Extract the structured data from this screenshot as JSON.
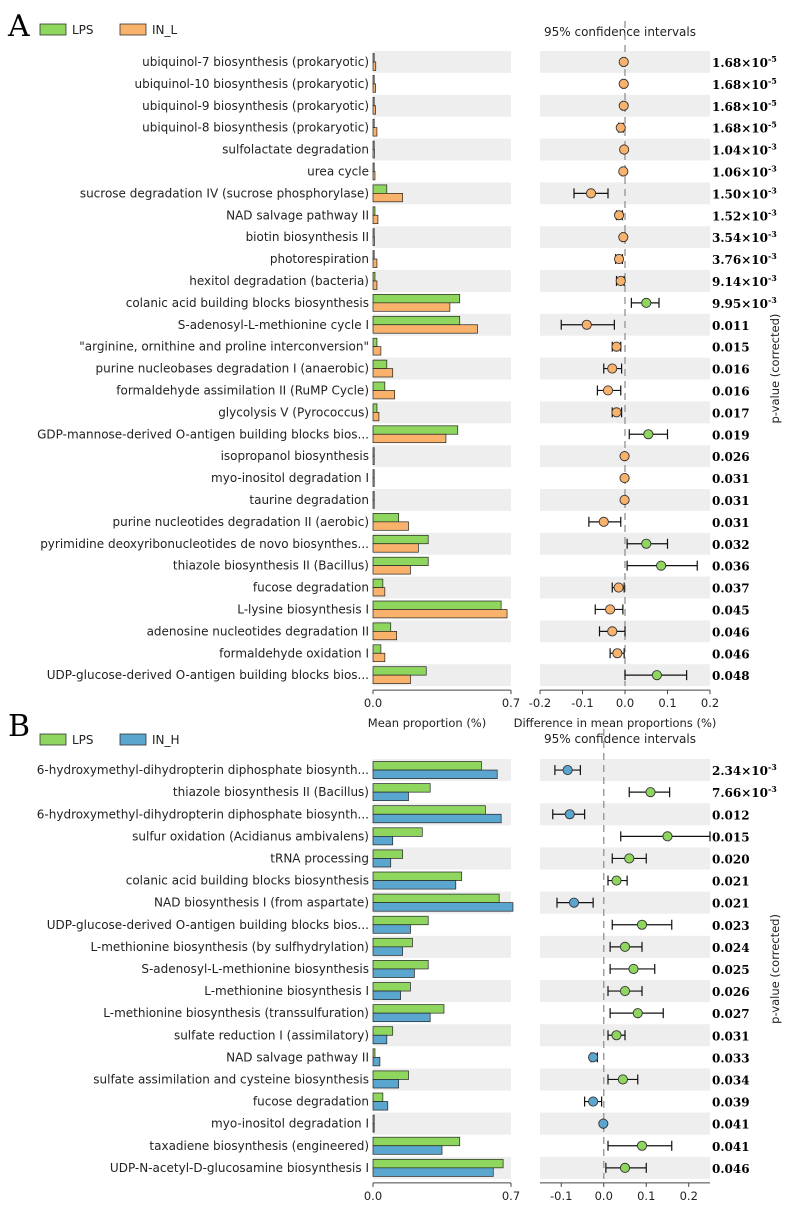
{
  "chart_data": [
    {
      "type": "bar",
      "panel": "A",
      "legend": [
        {
          "name": "LPS",
          "color": "#8fd65e"
        },
        {
          "name": "IN_L",
          "color": "#f9b26c"
        }
      ],
      "xlabel_bars": "Mean proportion (%)",
      "xlabel_diff": "Difference in mean proportions (%)",
      "ci_title": "95% confidence intervals",
      "pvalue_label": "p-value (corrected)",
      "bar_xlim": [
        0,
        0.7
      ],
      "bar_ticks": [
        "0.0",
        "0.7"
      ],
      "diff_xlim": [
        -0.2,
        0.2
      ],
      "diff_ticks": [
        "-0.2",
        "-0.1",
        "0.0",
        "0.1",
        "0.2"
      ],
      "categories": [
        "ubiquinol-7 biosynthesis (prokaryotic)",
        "ubiquinol-10 biosynthesis (prokaryotic)",
        "ubiquinol-9 biosynthesis (prokaryotic)",
        "ubiquinol-8 biosynthesis (prokaryotic)",
        "sulfolactate degradation",
        "urea cycle",
        "sucrose degradation IV (sucrose phosphorylase)",
        "NAD salvage pathway II",
        "biotin biosynthesis II",
        "photorespiration",
        "hexitol degradation (bacteria)",
        "colanic acid building blocks biosynthesis",
        "S-adenosyl-L-methionine cycle I",
        "\"arginine, ornithine and proline interconversion\"",
        "purine nucleobases degradation I (anaerobic)",
        "formaldehyde assimilation II (RuMP Cycle)",
        "glycolysis V (Pyrococcus)",
        "GDP-mannose-derived O-antigen building blocks bios...",
        "isopropanol biosynthesis",
        "myo-inositol degradation I",
        "taurine degradation",
        "purine nucleotides degradation II (aerobic)",
        "pyrimidine deoxyribonucleotides de novo biosynthes...",
        "thiazole biosynthesis II (Bacillus)",
        "fucose degradation",
        "L-lysine biosynthesis I",
        "adenosine nucleotides degradation II",
        "formaldehyde oxidation I",
        "UDP-glucose-derived O-antigen building blocks bios..."
      ],
      "series": [
        {
          "name": "LPS",
          "values": [
            0.005,
            0.005,
            0.005,
            0.005,
            0.003,
            0.004,
            0.07,
            0.01,
            0.003,
            0.006,
            0.01,
            0.44,
            0.44,
            0.02,
            0.07,
            0.06,
            0.02,
            0.43,
            0.002,
            0.004,
            0.002,
            0.13,
            0.28,
            0.28,
            0.05,
            0.65,
            0.09,
            0.04,
            0.27
          ]
        },
        {
          "name": "IN_L",
          "values": [
            0.014,
            0.013,
            0.013,
            0.02,
            0.007,
            0.01,
            0.15,
            0.025,
            0.007,
            0.02,
            0.02,
            0.39,
            0.53,
            0.04,
            0.1,
            0.11,
            0.03,
            0.37,
            0.004,
            0.006,
            0.004,
            0.18,
            0.23,
            0.19,
            0.06,
            0.68,
            0.12,
            0.06,
            0.19
          ]
        }
      ],
      "diff": [
        {
          "mean": -0.003,
          "lo": -0.006,
          "hi": 0.0,
          "color": "#f9b26c"
        },
        {
          "mean": -0.003,
          "lo": -0.006,
          "hi": 0.0,
          "color": "#f9b26c"
        },
        {
          "mean": -0.003,
          "lo": -0.006,
          "hi": 0.0,
          "color": "#f9b26c"
        },
        {
          "mean": -0.01,
          "lo": -0.015,
          "hi": -0.004,
          "color": "#f9b26c"
        },
        {
          "mean": -0.002,
          "lo": -0.004,
          "hi": 0.0,
          "color": "#f9b26c"
        },
        {
          "mean": -0.004,
          "lo": -0.007,
          "hi": 0.0,
          "color": "#f9b26c"
        },
        {
          "mean": -0.08,
          "lo": -0.12,
          "hi": -0.04,
          "color": "#f9b26c"
        },
        {
          "mean": -0.014,
          "lo": -0.02,
          "hi": -0.006,
          "color": "#f9b26c"
        },
        {
          "mean": -0.004,
          "lo": -0.007,
          "hi": 0.0,
          "color": "#f9b26c"
        },
        {
          "mean": -0.014,
          "lo": -0.022,
          "hi": -0.006,
          "color": "#f9b26c"
        },
        {
          "mean": -0.01,
          "lo": -0.02,
          "hi": -0.002,
          "color": "#f9b26c"
        },
        {
          "mean": 0.05,
          "lo": 0.015,
          "hi": 0.08,
          "color": "#8fd65e"
        },
        {
          "mean": -0.09,
          "lo": -0.15,
          "hi": -0.025,
          "color": "#f9b26c"
        },
        {
          "mean": -0.02,
          "lo": -0.03,
          "hi": -0.01,
          "color": "#f9b26c"
        },
        {
          "mean": -0.03,
          "lo": -0.05,
          "hi": -0.008,
          "color": "#f9b26c"
        },
        {
          "mean": -0.04,
          "lo": -0.065,
          "hi": -0.01,
          "color": "#f9b26c"
        },
        {
          "mean": -0.02,
          "lo": -0.03,
          "hi": -0.008,
          "color": "#f9b26c"
        },
        {
          "mean": 0.055,
          "lo": 0.01,
          "hi": 0.1,
          "color": "#8fd65e"
        },
        {
          "mean": -0.001,
          "lo": -0.002,
          "hi": 0.0,
          "color": "#f9b26c"
        },
        {
          "mean": -0.001,
          "lo": -0.002,
          "hi": 0.0,
          "color": "#f9b26c"
        },
        {
          "mean": -0.001,
          "lo": -0.002,
          "hi": 0.0,
          "color": "#f9b26c"
        },
        {
          "mean": -0.05,
          "lo": -0.085,
          "hi": -0.01,
          "color": "#f9b26c"
        },
        {
          "mean": 0.05,
          "lo": 0.005,
          "hi": 0.1,
          "color": "#8fd65e"
        },
        {
          "mean": 0.085,
          "lo": 0.005,
          "hi": 0.17,
          "color": "#8fd65e"
        },
        {
          "mean": -0.015,
          "lo": -0.03,
          "hi": -0.002,
          "color": "#f9b26c"
        },
        {
          "mean": -0.035,
          "lo": -0.07,
          "hi": -0.005,
          "color": "#f9b26c"
        },
        {
          "mean": -0.03,
          "lo": -0.06,
          "hi": 0.0,
          "color": "#f9b26c"
        },
        {
          "mean": -0.018,
          "lo": -0.035,
          "hi": -0.002,
          "color": "#f9b26c"
        },
        {
          "mean": 0.075,
          "lo": 0.0,
          "hi": 0.145,
          "color": "#8fd65e"
        }
      ],
      "pvalues": [
        {
          "base": "1.68×10",
          "exp": "-5"
        },
        {
          "base": "1.68×10",
          "exp": "-5"
        },
        {
          "base": "1.68×10",
          "exp": "-5"
        },
        {
          "base": "1.68×10",
          "exp": "-5"
        },
        {
          "base": "1.04×10",
          "exp": "-3"
        },
        {
          "base": "1.06×10",
          "exp": "-3"
        },
        {
          "base": "1.50×10",
          "exp": "-3"
        },
        {
          "base": "1.52×10",
          "exp": "-3"
        },
        {
          "base": "3.54×10",
          "exp": "-3"
        },
        {
          "base": "3.76×10",
          "exp": "-3"
        },
        {
          "base": "9.14×10",
          "exp": "-3"
        },
        {
          "base": "9.95×10",
          "exp": "-3"
        },
        {
          "base": "0.011",
          "exp": ""
        },
        {
          "base": "0.015",
          "exp": ""
        },
        {
          "base": "0.016",
          "exp": ""
        },
        {
          "base": "0.016",
          "exp": ""
        },
        {
          "base": "0.017",
          "exp": ""
        },
        {
          "base": "0.019",
          "exp": ""
        },
        {
          "base": "0.026",
          "exp": ""
        },
        {
          "base": "0.031",
          "exp": ""
        },
        {
          "base": "0.031",
          "exp": ""
        },
        {
          "base": "0.031",
          "exp": ""
        },
        {
          "base": "0.032",
          "exp": ""
        },
        {
          "base": "0.036",
          "exp": ""
        },
        {
          "base": "0.037",
          "exp": ""
        },
        {
          "base": "0.045",
          "exp": ""
        },
        {
          "base": "0.046",
          "exp": ""
        },
        {
          "base": "0.046",
          "exp": ""
        },
        {
          "base": "0.048",
          "exp": ""
        }
      ]
    },
    {
      "type": "bar",
      "panel": "B",
      "legend": [
        {
          "name": "LPS",
          "color": "#8fd65e"
        },
        {
          "name": "IN_H",
          "color": "#5aa6cf"
        }
      ],
      "xlabel_bars": "Mean proportion (%)",
      "xlabel_diff": "Difference in mean proportions (%)",
      "ci_title": "95% confidence intervals",
      "pvalue_label": "p-value (corrected)",
      "bar_xlim": [
        0,
        0.7
      ],
      "bar_ticks": [
        "0.0",
        "0.7"
      ],
      "diff_xlim": [
        -0.15,
        0.25
      ],
      "diff_ticks": [
        "-0.1",
        "0.0",
        "0.1",
        "0.2"
      ],
      "categories": [
        "6-hydroxymethyl-dihydropterin diphosphate biosynth...",
        "thiazole biosynthesis II (Bacillus)",
        "6-hydroxymethyl-dihydropterin diphosphate biosynth...",
        "sulfur oxidation (Acidianus ambivalens)",
        "tRNA processing",
        "colanic acid building blocks biosynthesis",
        "NAD biosynthesis I (from aspartate)",
        "UDP-glucose-derived O-antigen building blocks bios...",
        "L-methionine biosynthesis (by sulfhydrylation)",
        "S-adenosyl-L-methionine biosynthesis",
        "L-methionine biosynthesis I",
        "L-methionine biosynthesis (transsulfuration)",
        "sulfate reduction I (assimilatory)",
        "NAD salvage pathway II",
        "sulfate assimilation and cysteine biosynthesis",
        "fucose degradation",
        "myo-inositol degradation I",
        "taxadiene biosynthesis (engineered)",
        "UDP-N-acetyl-D-glucosamine biosynthesis I"
      ],
      "series": [
        {
          "name": "LPS",
          "values": [
            0.55,
            0.29,
            0.57,
            0.25,
            0.15,
            0.45,
            0.64,
            0.28,
            0.2,
            0.28,
            0.19,
            0.36,
            0.1,
            0.01,
            0.18,
            0.05,
            0.003,
            0.44,
            0.66
          ]
        },
        {
          "name": "IN_H",
          "values": [
            0.63,
            0.18,
            0.65,
            0.1,
            0.09,
            0.42,
            0.71,
            0.19,
            0.15,
            0.21,
            0.14,
            0.29,
            0.07,
            0.035,
            0.13,
            0.075,
            0.004,
            0.35,
            0.61
          ]
        }
      ],
      "diff": [
        {
          "mean": -0.085,
          "lo": -0.115,
          "hi": -0.055,
          "color": "#5aa6cf"
        },
        {
          "mean": 0.11,
          "lo": 0.06,
          "hi": 0.155,
          "color": "#8fd65e"
        },
        {
          "mean": -0.08,
          "lo": -0.12,
          "hi": -0.045,
          "color": "#5aa6cf"
        },
        {
          "mean": 0.15,
          "lo": 0.04,
          "hi": 0.25,
          "color": "#8fd65e"
        },
        {
          "mean": 0.06,
          "lo": 0.02,
          "hi": 0.1,
          "color": "#8fd65e"
        },
        {
          "mean": 0.03,
          "lo": 0.01,
          "hi": 0.055,
          "color": "#8fd65e"
        },
        {
          "mean": -0.07,
          "lo": -0.11,
          "hi": -0.025,
          "color": "#5aa6cf"
        },
        {
          "mean": 0.09,
          "lo": 0.02,
          "hi": 0.16,
          "color": "#8fd65e"
        },
        {
          "mean": 0.05,
          "lo": 0.015,
          "hi": 0.09,
          "color": "#8fd65e"
        },
        {
          "mean": 0.07,
          "lo": 0.015,
          "hi": 0.12,
          "color": "#8fd65e"
        },
        {
          "mean": 0.05,
          "lo": 0.01,
          "hi": 0.09,
          "color": "#8fd65e"
        },
        {
          "mean": 0.08,
          "lo": 0.015,
          "hi": 0.14,
          "color": "#8fd65e"
        },
        {
          "mean": 0.03,
          "lo": 0.01,
          "hi": 0.05,
          "color": "#8fd65e"
        },
        {
          "mean": -0.025,
          "lo": -0.03,
          "hi": -0.015,
          "color": "#5aa6cf"
        },
        {
          "mean": 0.045,
          "lo": 0.01,
          "hi": 0.08,
          "color": "#8fd65e"
        },
        {
          "mean": -0.025,
          "lo": -0.045,
          "hi": -0.005,
          "color": "#5aa6cf"
        },
        {
          "mean": -0.001,
          "lo": -0.002,
          "hi": 0.0,
          "color": "#5aa6cf"
        },
        {
          "mean": 0.09,
          "lo": 0.01,
          "hi": 0.16,
          "color": "#8fd65e"
        },
        {
          "mean": 0.05,
          "lo": 0.005,
          "hi": 0.1,
          "color": "#8fd65e"
        }
      ],
      "pvalues": [
        {
          "base": "2.34×10",
          "exp": "-3"
        },
        {
          "base": "7.66×10",
          "exp": "-3"
        },
        {
          "base": "0.012",
          "exp": ""
        },
        {
          "base": "0.015",
          "exp": ""
        },
        {
          "base": "0.020",
          "exp": ""
        },
        {
          "base": "0.021",
          "exp": ""
        },
        {
          "base": "0.021",
          "exp": ""
        },
        {
          "base": "0.023",
          "exp": ""
        },
        {
          "base": "0.024",
          "exp": ""
        },
        {
          "base": "0.025",
          "exp": ""
        },
        {
          "base": "0.026",
          "exp": ""
        },
        {
          "base": "0.027",
          "exp": ""
        },
        {
          "base": "0.031",
          "exp": ""
        },
        {
          "base": "0.033",
          "exp": ""
        },
        {
          "base": "0.034",
          "exp": ""
        },
        {
          "base": "0.039",
          "exp": ""
        },
        {
          "base": "0.041",
          "exp": ""
        },
        {
          "base": "0.041",
          "exp": ""
        },
        {
          "base": "0.046",
          "exp": ""
        }
      ]
    }
  ]
}
